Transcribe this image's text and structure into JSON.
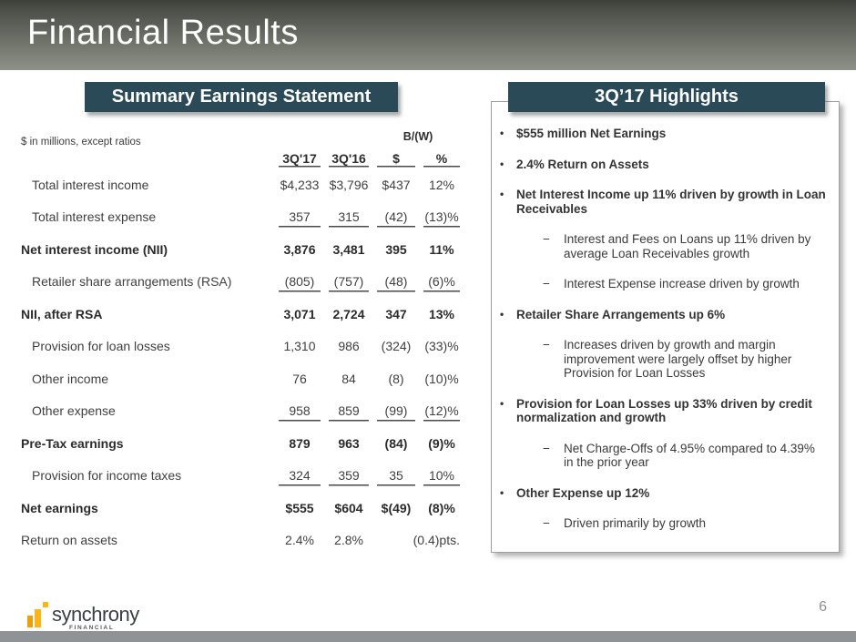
{
  "slide": {
    "title": "Financial Results",
    "page_number": "6"
  },
  "summary": {
    "header": "Summary Earnings Statement",
    "note": "$ in millions, except ratios",
    "bw_label": "B/(W)",
    "columns": [
      "3Q'17",
      "3Q'16",
      "$",
      "%"
    ],
    "rows": [
      {
        "label": "Total interest income",
        "indent": true,
        "values": [
          "$4,233",
          "$3,796",
          "$437",
          "12%"
        ]
      },
      {
        "label": "Total interest expense",
        "indent": true,
        "underline": true,
        "values": [
          "357",
          "315",
          "(42)",
          "(13)%"
        ]
      },
      {
        "label": "Net interest income (NII)",
        "bold": true,
        "values": [
          "3,876",
          "3,481",
          "395",
          "11%"
        ]
      },
      {
        "label": "Retailer share arrangements (RSA)",
        "indent": true,
        "underline": true,
        "values": [
          "(805)",
          "(757)",
          "(48)",
          "(6)%"
        ]
      },
      {
        "label": "NII, after RSA",
        "bold": true,
        "values": [
          "3,071",
          "2,724",
          "347",
          "13%"
        ]
      },
      {
        "label": "Provision for loan losses",
        "indent": true,
        "values": [
          "1,310",
          "986",
          "(324)",
          "(33)%"
        ]
      },
      {
        "label": "Other income",
        "indent": true,
        "values": [
          "76",
          "84",
          "(8)",
          "(10)%"
        ]
      },
      {
        "label": "Other expense",
        "indent": true,
        "underline": true,
        "values": [
          "958",
          "859",
          "(99)",
          "(12)%"
        ]
      },
      {
        "label": "Pre-Tax earnings",
        "bold": true,
        "values": [
          "879",
          "963",
          "(84)",
          "(9)%"
        ]
      },
      {
        "label": "Provision for income taxes",
        "indent": true,
        "underline": true,
        "values": [
          "324",
          "359",
          "35",
          "10%"
        ]
      },
      {
        "label": "Net earnings",
        "bold": true,
        "values": [
          "$555",
          "$604",
          "$(49)",
          "(8)%"
        ]
      },
      {
        "label": "Return on assets",
        "merge_last": true,
        "values": [
          "2.4%",
          "2.8%",
          "",
          "(0.4)pts."
        ]
      }
    ]
  },
  "highlights": {
    "header": "3Q’17 Highlights",
    "items": [
      {
        "level": 1,
        "text": "$555 million Net Earnings"
      },
      {
        "level": 1,
        "text": "2.4% Return on Assets"
      },
      {
        "level": 1,
        "text": "Net Interest Income up 11% driven by growth in Loan Receivables"
      },
      {
        "level": 2,
        "text": "Interest and Fees on Loans up 11% driven by average Loan Receivables growth"
      },
      {
        "level": 2,
        "text": "Interest Expense increase driven by growth"
      },
      {
        "level": 1,
        "text": "Retailer Share Arrangements up 6%"
      },
      {
        "level": 2,
        "text": "Increases driven by growth and margin improvement were largely offset by higher Provision for Loan Losses"
      },
      {
        "level": 1,
        "text": "Provision for Loan Losses up 33% driven by credit normalization and growth"
      },
      {
        "level": 2,
        "text": "Net Charge-Offs of 4.95% compared to 4.39% in the prior year"
      },
      {
        "level": 1,
        "text": "Other Expense up 12%"
      },
      {
        "level": 2,
        "text": "Driven primarily by growth"
      }
    ]
  },
  "footer": {
    "brand": "synchrony",
    "brand_sub": "FINANCIAL"
  },
  "colors": {
    "header_teal": "#2b4a58",
    "banner_top": "#3d403a",
    "banner_bottom": "#8e9187",
    "gold": "#fcb515",
    "gold_dark": "#e8a00e",
    "footer_bar": "#909396"
  }
}
